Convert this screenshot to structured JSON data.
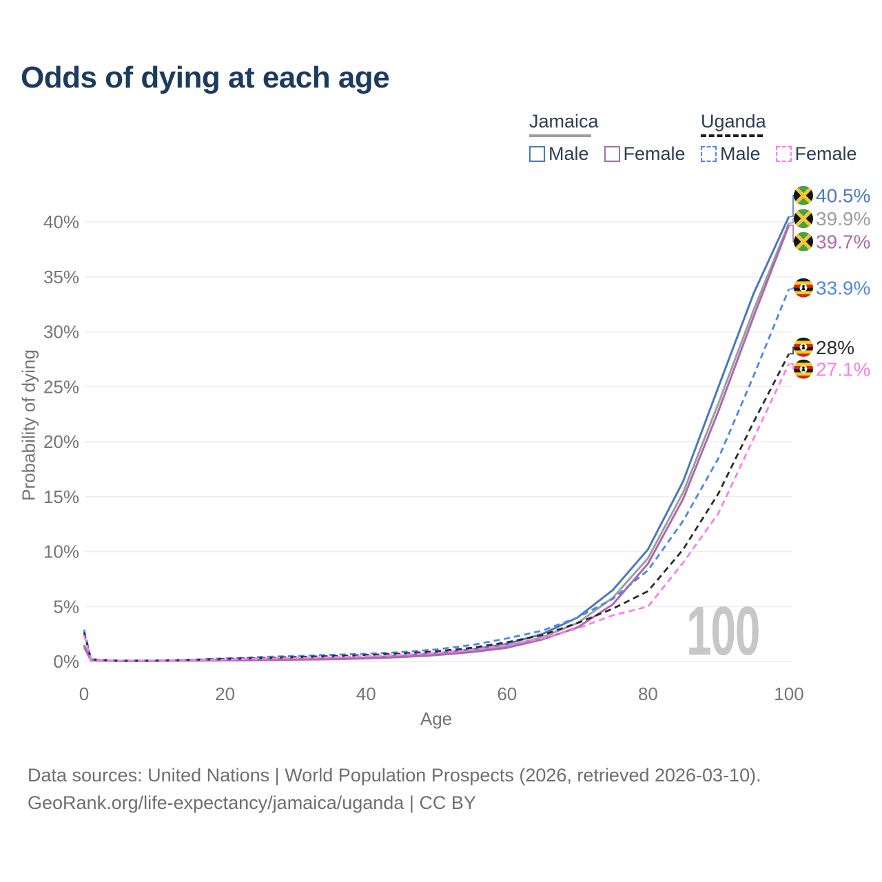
{
  "title": "Odds of dying at each age",
  "legend": {
    "groups": [
      {
        "label": "Jamaica",
        "line_color": "#9e9e9e",
        "line_style": "solid",
        "items": [
          {
            "label": "Male",
            "color": "#4a79bb",
            "style": "solid"
          },
          {
            "label": "Female",
            "color": "#ad68b0",
            "style": "solid"
          }
        ]
      },
      {
        "label": "Uganda",
        "line_color": "#1c1c1c",
        "line_style": "dashed",
        "items": [
          {
            "label": "Male",
            "color": "#4c86ec",
            "style": "dashed"
          },
          {
            "label": "Female",
            "color": "#fb7cf0",
            "style": "dashed"
          }
        ]
      }
    ]
  },
  "chart_data": {
    "type": "line",
    "title": "Odds of dying at each age",
    "xlabel": "Age",
    "ylabel": "Probability of dying",
    "x_ticks": [
      0,
      20,
      40,
      60,
      80,
      100
    ],
    "y_ticks": [
      {
        "value": 0,
        "label": "0%"
      },
      {
        "value": 5,
        "label": "5%"
      },
      {
        "value": 10,
        "label": "10%"
      },
      {
        "value": 15,
        "label": "15%"
      },
      {
        "value": 20,
        "label": "20%"
      },
      {
        "value": 25,
        "label": "25%"
      },
      {
        "value": 30,
        "label": "30%"
      },
      {
        "value": 35,
        "label": "35%"
      },
      {
        "value": 40,
        "label": "40%"
      }
    ],
    "xlim": [
      0,
      100
    ],
    "ylim": [
      0,
      42
    ],
    "grid": "horizontal",
    "legend_position": "top-right",
    "watermark": "100",
    "ages": [
      0,
      1,
      5,
      10,
      15,
      20,
      25,
      30,
      35,
      40,
      45,
      50,
      55,
      60,
      65,
      70,
      75,
      80,
      85,
      90,
      95,
      100
    ],
    "series": [
      {
        "id": "jamaica-male",
        "name": "Jamaica Male",
        "country": "Jamaica",
        "sex": "Male",
        "color": "#4a79bb",
        "dash": "solid",
        "flag": "jamaica",
        "end_label": "40.5%",
        "end_value": 40.5,
        "label_y_pct": 42.4,
        "values": [
          1.5,
          0.12,
          0.05,
          0.06,
          0.12,
          0.18,
          0.21,
          0.24,
          0.28,
          0.35,
          0.5,
          0.75,
          1.1,
          1.6,
          2.5,
          4.0,
          6.5,
          10.2,
          16.4,
          25.0,
          33.5,
          40.5
        ]
      },
      {
        "id": "jamaica-both",
        "name": "Jamaica",
        "country": "Jamaica",
        "sex": "Both",
        "color": "#9e9e9e",
        "dash": "solid",
        "flag": "jamaica",
        "end_label": "39.9%",
        "end_value": 39.9,
        "label_y_pct": 40.3,
        "values": [
          1.4,
          0.11,
          0.05,
          0.05,
          0.1,
          0.15,
          0.18,
          0.2,
          0.24,
          0.31,
          0.44,
          0.65,
          0.95,
          1.4,
          2.2,
          3.5,
          5.8,
          9.4,
          15.4,
          23.5,
          32.0,
          39.9
        ]
      },
      {
        "id": "jamaica-female",
        "name": "Jamaica Female",
        "country": "Jamaica",
        "sex": "Female",
        "color": "#ad68b0",
        "dash": "solid",
        "flag": "jamaica",
        "end_label": "39.7%",
        "end_value": 39.7,
        "label_y_pct": 38.2,
        "values": [
          1.3,
          0.1,
          0.04,
          0.05,
          0.08,
          0.11,
          0.13,
          0.16,
          0.2,
          0.28,
          0.4,
          0.58,
          0.85,
          1.25,
          2.0,
          3.1,
          5.2,
          8.9,
          14.8,
          22.8,
          31.4,
          39.7
        ]
      },
      {
        "id": "uganda-male",
        "name": "Uganda Male",
        "country": "Uganda",
        "sex": "Male",
        "color": "#4c86ec",
        "dash": "dashed",
        "flag": "uganda",
        "end_label": "33.9%",
        "end_value": 33.9,
        "label_y_pct": 34.0,
        "values": [
          2.9,
          0.2,
          0.08,
          0.09,
          0.16,
          0.28,
          0.4,
          0.5,
          0.6,
          0.7,
          0.85,
          1.1,
          1.5,
          2.1,
          2.8,
          4.0,
          5.7,
          8.3,
          12.8,
          18.5,
          26.0,
          33.9
        ]
      },
      {
        "id": "uganda-both",
        "name": "Uganda",
        "country": "Uganda",
        "sex": "Both",
        "color": "#2b2b2b",
        "dash": "dashed",
        "flag": "uganda",
        "end_label": "28%",
        "end_value": 28.0,
        "label_y_pct": 28.6,
        "values": [
          2.65,
          0.18,
          0.07,
          0.08,
          0.14,
          0.23,
          0.32,
          0.4,
          0.48,
          0.58,
          0.72,
          0.92,
          1.25,
          1.75,
          2.4,
          3.5,
          4.8,
          6.4,
          10.2,
          15.3,
          21.8,
          28.0
        ]
      },
      {
        "id": "uganda-female",
        "name": "Uganda Female",
        "country": "Uganda",
        "sex": "Female",
        "color": "#fb7cf0",
        "dash": "dashed",
        "flag": "uganda",
        "end_label": "27.1%",
        "end_value": 27.1,
        "label_y_pct": 26.6,
        "values": [
          2.4,
          0.17,
          0.06,
          0.07,
          0.12,
          0.18,
          0.25,
          0.31,
          0.38,
          0.47,
          0.6,
          0.78,
          1.05,
          1.5,
          2.1,
          3.0,
          4.2,
          5.0,
          9.0,
          13.5,
          20.3,
          27.1
        ]
      }
    ],
    "flag_colors": {
      "jamaica": {
        "green": "#4c9e43",
        "black": "#141414",
        "gold": "#f0c835"
      },
      "uganda": {
        "black": "#1a1a1a",
        "yellow": "#f2ce24",
        "red": "#d62612",
        "white": "#ffffff"
      }
    }
  },
  "footer": {
    "line1": "Data sources: United Nations | World Population Prospects (2026, retrieved 2026-03-10).",
    "line2": "GeoRank.org/life-expectancy/jamaica/uganda | CC BY"
  }
}
